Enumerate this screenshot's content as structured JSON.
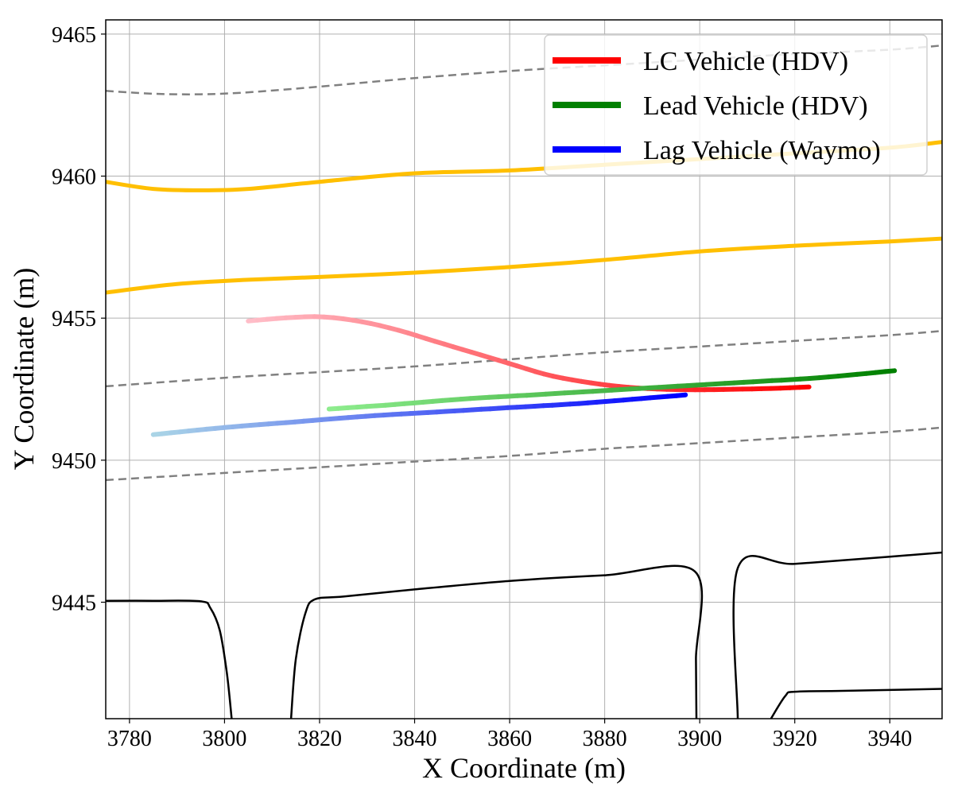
{
  "chart_data": {
    "type": "line",
    "title": "",
    "xlabel": "X Coordinate (m)",
    "ylabel": "Y Coordinate (m)",
    "xlim": [
      3775,
      3951
    ],
    "ylim": [
      9440.9,
      9465.5
    ],
    "grid": true,
    "x_ticks": [
      3780,
      3800,
      3820,
      3840,
      3860,
      3880,
      3900,
      3920,
      3940
    ],
    "y_ticks": [
      9445,
      9450,
      9455,
      9460,
      9465
    ],
    "x_tick_labels": [
      "3780",
      "3800",
      "3820",
      "3840",
      "3860",
      "3880",
      "3900",
      "3920",
      "3940"
    ],
    "y_tick_labels": [
      "9445",
      "9450",
      "9455",
      "9460",
      "9465"
    ],
    "legend_position": "top-right",
    "series": [
      {
        "name": "LC Vehicle (HDV)",
        "role": "trajectory",
        "color": "#ff0000",
        "fade_from": "#ffc0cb",
        "x": [
          3805,
          3812,
          3820,
          3828,
          3836,
          3844,
          3852,
          3860,
          3868,
          3876,
          3884,
          3892,
          3900,
          3908,
          3916,
          3923
        ],
        "y": [
          9454.9,
          9455.0,
          9455.05,
          9454.9,
          9454.6,
          9454.2,
          9453.8,
          9453.4,
          9453.0,
          9452.75,
          9452.58,
          9452.5,
          9452.48,
          9452.5,
          9452.53,
          9452.58
        ]
      },
      {
        "name": "Lead Vehicle (HDV)",
        "role": "trajectory",
        "color": "#008000",
        "fade_from": "#90ee90",
        "x": [
          3822,
          3835,
          3850,
          3865,
          3880,
          3895,
          3910,
          3925,
          3941
        ],
        "y": [
          9451.8,
          9451.95,
          9452.15,
          9452.3,
          9452.45,
          9452.6,
          9452.75,
          9452.9,
          9453.15
        ]
      },
      {
        "name": "Lag Vehicle (Waymo)",
        "role": "trajectory",
        "color": "#0000ff",
        "fade_from": "#add8e6",
        "x": [
          3785,
          3800,
          3815,
          3830,
          3845,
          3860,
          3875,
          3890,
          3897
        ],
        "y": [
          9450.9,
          9451.15,
          9451.35,
          9451.55,
          9451.7,
          9451.85,
          9452.0,
          9452.2,
          9452.3
        ]
      },
      {
        "name": "road edge upper",
        "role": "road-yellow",
        "color": "#ffbf00",
        "x": [
          3775,
          3785,
          3795,
          3805,
          3820,
          3840,
          3860,
          3880,
          3900,
          3920,
          3940,
          3951
        ],
        "y": [
          9459.8,
          9459.55,
          9459.5,
          9459.55,
          9459.8,
          9460.1,
          9460.2,
          9460.4,
          9460.6,
          9460.8,
          9461.0,
          9461.2
        ]
      },
      {
        "name": "road edge lower",
        "role": "road-yellow",
        "color": "#ffbf00",
        "x": [
          3775,
          3790,
          3805,
          3820,
          3840,
          3860,
          3880,
          3900,
          3920,
          3940,
          3951
        ],
        "y": [
          9455.9,
          9456.2,
          9456.35,
          9456.45,
          9456.6,
          9456.8,
          9457.05,
          9457.35,
          9457.55,
          9457.7,
          9457.8
        ]
      },
      {
        "name": "lane divider top",
        "role": "lane-dashed",
        "color": "#808080",
        "x": [
          3775,
          3785,
          3795,
          3805,
          3820,
          3840,
          3860,
          3880,
          3900,
          3920,
          3940,
          3951
        ],
        "y": [
          9463.0,
          9462.9,
          9462.88,
          9462.95,
          9463.15,
          9463.45,
          9463.7,
          9463.9,
          9464.1,
          9464.3,
          9464.45,
          9464.6
        ]
      },
      {
        "name": "lane divider middle",
        "role": "lane-dashed",
        "color": "#808080",
        "x": [
          3775,
          3800,
          3820,
          3840,
          3860,
          3880,
          3900,
          3920,
          3940,
          3951
        ],
        "y": [
          9452.6,
          9452.9,
          9453.1,
          9453.3,
          9453.55,
          9453.8,
          9454.0,
          9454.2,
          9454.4,
          9454.55
        ]
      },
      {
        "name": "lane divider bottom",
        "role": "lane-dashed",
        "color": "#808080",
        "x": [
          3775,
          3800,
          3820,
          3840,
          3860,
          3880,
          3900,
          3920,
          3940,
          3951
        ],
        "y": [
          9449.3,
          9449.55,
          9449.75,
          9449.95,
          9450.15,
          9450.4,
          9450.6,
          9450.8,
          9451.0,
          9451.15
        ]
      },
      {
        "name": "curb left block",
        "role": "boundary",
        "color": "#000000",
        "x": [
          3775,
          3785,
          3795,
          3797,
          3799,
          3800.5,
          3801.5
        ],
        "y": [
          9445.05,
          9445.05,
          9445.03,
          9444.8,
          9444.0,
          9442.5,
          9440.9
        ]
      },
      {
        "name": "curb middle block",
        "role": "boundary",
        "color": "#000000",
        "x": [
          3814,
          3815,
          3817,
          3819,
          3825,
          3840,
          3860,
          3880,
          3899,
          3899.2,
          3899.3
        ],
        "y": [
          9440.9,
          9443.0,
          9444.6,
          9445.1,
          9445.2,
          9445.45,
          9445.75,
          9445.95,
          9446.08,
          9443.0,
          9440.9
        ]
      },
      {
        "name": "curb right block",
        "role": "boundary",
        "color": "#000000",
        "x": [
          3908,
          3908,
          3920,
          3940,
          3951
        ],
        "y": [
          9440.9,
          9446.2,
          9446.35,
          9446.6,
          9446.75
        ]
      },
      {
        "name": "curb corner",
        "role": "boundary",
        "color": "#000000",
        "x": [
          3915,
          3918,
          3920,
          3930,
          3951
        ],
        "y": [
          9440.9,
          9441.7,
          9441.85,
          9441.88,
          9441.95
        ]
      }
    ]
  }
}
